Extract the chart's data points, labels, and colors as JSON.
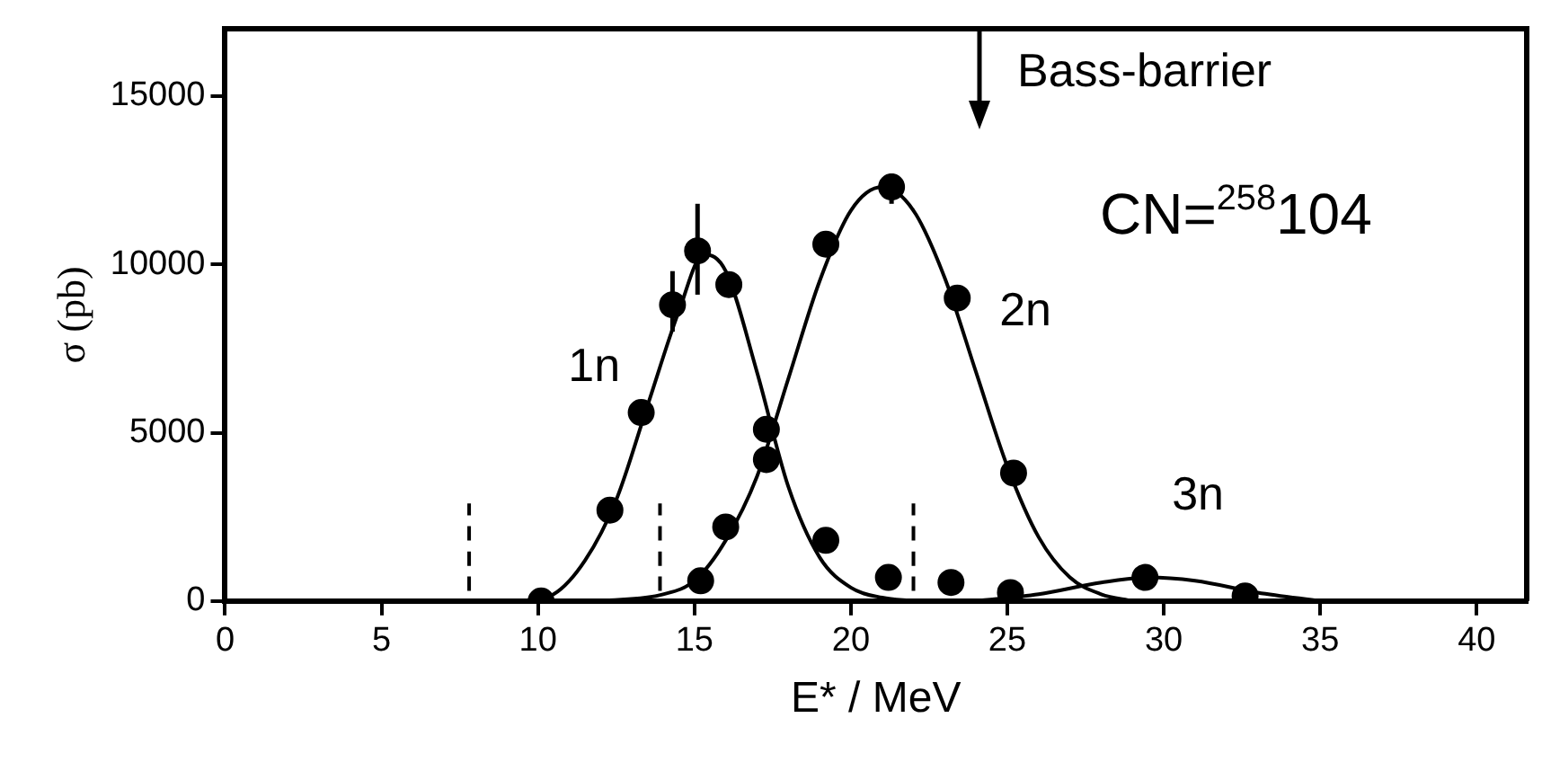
{
  "chart_data": {
    "type": "scatter",
    "xlabel": "E* / MeV",
    "ylabel": "σ (pb)",
    "xlim": [
      0,
      41.6
    ],
    "ylim": [
      0,
      17000
    ],
    "xticks": [
      0,
      5,
      10,
      15,
      20,
      25,
      30,
      35,
      40
    ],
    "yticks": [
      0,
      5000,
      10000,
      15000
    ],
    "grid": false,
    "legend": false,
    "marker": "circle",
    "series": [
      {
        "name": "1n",
        "color": "#000000",
        "x": [
          10.1,
          12.3,
          13.3,
          14.3,
          15.1,
          16.1,
          17.3,
          19.2,
          21.2
        ],
        "values": [
          0,
          2700,
          5600,
          8800,
          10400,
          9400,
          5100,
          1800,
          700
        ],
        "errors": [
          null,
          null,
          null,
          [
            8000,
            9800
          ],
          [
            9100,
            11800
          ],
          null,
          null,
          null,
          null
        ]
      },
      {
        "name": "2n",
        "color": "#000000",
        "x": [
          15.2,
          16.0,
          17.3,
          19.2,
          21.3,
          23.4,
          25.2
        ],
        "values": [
          600,
          2200,
          4200,
          10600,
          12300,
          9000,
          3800
        ],
        "errors": [
          null,
          null,
          null,
          null,
          [
            11800,
            12700
          ],
          null,
          null
        ]
      },
      {
        "name": "3n",
        "color": "#000000",
        "x": [
          23.2,
          25.1,
          29.4,
          32.6
        ],
        "values": [
          550,
          250,
          700,
          150
        ]
      },
      {
        "type": "line",
        "color": "#000000",
        "marker": "none",
        "x": [
          9.5,
          10.5,
          11.5,
          12.5,
          13.5,
          14.5,
          15.3,
          16,
          17,
          18,
          19,
          20,
          21,
          22
        ],
        "values": [
          0,
          200,
          1200,
          3000,
          5800,
          8600,
          10300,
          9800,
          6800,
          3400,
          1300,
          400,
          100,
          0
        ]
      },
      {
        "type": "line",
        "color": "#000000",
        "marker": "none",
        "x": [
          12,
          14,
          15,
          16,
          17,
          18,
          19,
          20,
          21,
          22,
          23,
          24,
          25,
          26,
          27,
          28,
          29
        ],
        "values": [
          0,
          200,
          600,
          1800,
          3700,
          6600,
          9500,
          11600,
          12300,
          11600,
          9600,
          6800,
          4000,
          1900,
          700,
          200,
          0
        ]
      },
      {
        "type": "line",
        "color": "#000000",
        "marker": "none",
        "x": [
          24,
          26,
          28,
          29.5,
          31,
          33,
          35
        ],
        "values": [
          0,
          200,
          550,
          700,
          600,
          250,
          0
        ]
      },
      {
        "type": "line",
        "color": "#000000",
        "marker": "none",
        "line_style": "dashed",
        "x": [
          7.8,
          7.8
        ],
        "values": [
          300,
          2900
        ]
      },
      {
        "type": "line",
        "color": "#000000",
        "marker": "none",
        "line_style": "dashed",
        "x": [
          13.9,
          13.9
        ],
        "values": [
          300,
          2900
        ]
      },
      {
        "type": "line",
        "color": "#000000",
        "marker": "none",
        "line_style": "dashed",
        "x": [
          22,
          22
        ],
        "values": [
          300,
          2900
        ]
      }
    ],
    "annotations": [
      "Bass-barrier",
      "CN=$^{258}$104"
    ]
  }
}
